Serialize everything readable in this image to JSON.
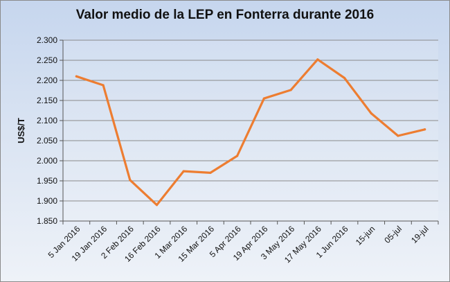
{
  "chart_data": {
    "type": "line",
    "title": "Valor medio de la LEP en Fonterra durante 2016",
    "ylabel": "US$/T",
    "xlabel": "",
    "ylim": [
      1850,
      2300
    ],
    "yticks": [
      "1.850",
      "1.900",
      "1.950",
      "2.000",
      "2.050",
      "2.100",
      "2.150",
      "2.200",
      "2.250",
      "2.300"
    ],
    "grid": true,
    "categories": [
      "5 Jan 2016",
      "19 Jan 2016",
      "2 Feb 2016",
      "16 Feb 2016",
      "1 Mar 2016",
      "15 Mar 2016",
      "5 Apr 2016",
      "19 Apr 2016",
      "3 May 2016",
      "17 May 2016",
      "1 Jun 2016",
      "15-jun",
      "05-jul",
      "19-jul"
    ],
    "series": [
      {
        "values": [
          2210,
          2188,
          1952,
          1890,
          1974,
          1970,
          2012,
          2155,
          2176,
          2252,
          2206,
          2118,
          2062,
          2078
        ],
        "color": "#ed7d31"
      }
    ],
    "colors": {
      "line": "#ed7d31",
      "grid": "#8a8a8a"
    }
  }
}
